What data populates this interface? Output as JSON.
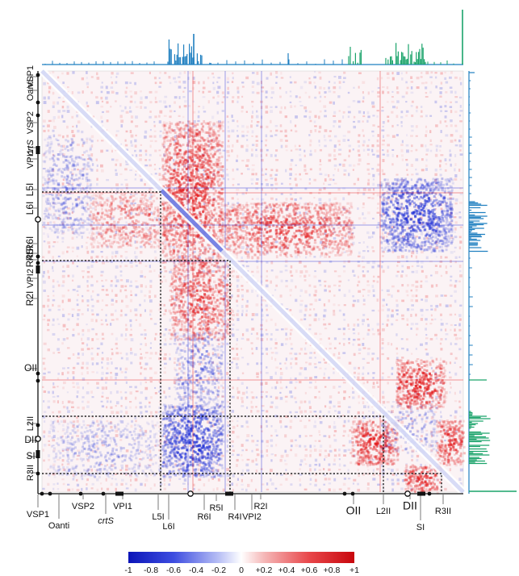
{
  "colors": {
    "negative": "#1e2fd6",
    "positive": "#e31a1c",
    "neutral": "#ffffff",
    "chromosome_I_track": "#1f7fc0",
    "chromosome_II_track": "#1aa36a"
  },
  "left_labels": [
    {
      "text": "VSP1",
      "italic": false
    },
    {
      "text": "Oanti",
      "italic": false
    },
    {
      "text": "VSP2",
      "italic": false
    },
    {
      "text": "crtS",
      "italic": true
    },
    {
      "text": "VPI1",
      "italic": false
    },
    {
      "text": "L5I",
      "italic": false
    },
    {
      "text": "L6I",
      "italic": false
    },
    {
      "text": "R6I",
      "italic": false
    },
    {
      "text": "R5I",
      "italic": false
    },
    {
      "text": "R4I",
      "italic": false
    },
    {
      "text": "VPI2",
      "italic": false
    },
    {
      "text": "R2I",
      "italic": false
    },
    {
      "text": "OII",
      "italic": false
    },
    {
      "text": "L2II",
      "italic": false
    },
    {
      "text": "DII",
      "italic": false
    },
    {
      "text": "SI",
      "italic": false
    },
    {
      "text": "R3II",
      "italic": false
    }
  ],
  "bottom_labels": [
    {
      "text": "VSP1",
      "italic": false
    },
    {
      "text": "Oanti",
      "italic": false
    },
    {
      "text": "VSP2",
      "italic": false
    },
    {
      "text": "crtS",
      "italic": true
    },
    {
      "text": "VPI1",
      "italic": false
    },
    {
      "text": "L5I",
      "italic": false
    },
    {
      "text": "L6I",
      "italic": false
    },
    {
      "text": "R6I",
      "italic": false
    },
    {
      "text": "R5I",
      "italic": false
    },
    {
      "text": "R4I",
      "italic": false
    },
    {
      "text": "VPI2",
      "italic": false
    },
    {
      "text": "R2I",
      "italic": false
    },
    {
      "text": "OII",
      "italic": false
    },
    {
      "text": "L2II",
      "italic": false
    },
    {
      "text": "DII",
      "italic": false
    },
    {
      "text": "SI",
      "italic": false
    },
    {
      "text": "R3II",
      "italic": false
    }
  ],
  "colorbar": {
    "ticks": [
      "-1",
      "-0.8",
      "-0.6",
      "-0.4",
      "-0.2",
      "0",
      "+0.2",
      "+0.4",
      "+0.6",
      "+0.8",
      "+1"
    ]
  }
}
